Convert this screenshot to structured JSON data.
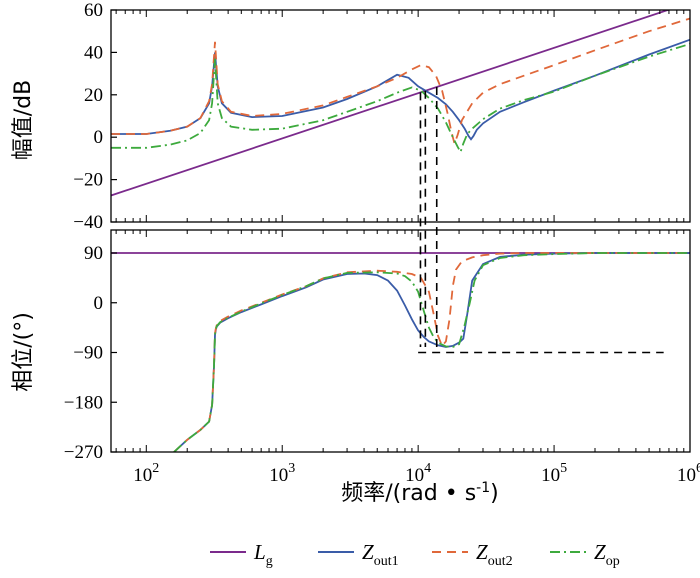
{
  "chart_data": [
    {
      "type": "line",
      "panel": "magnitude",
      "xscale": "log",
      "xlim": [
        55,
        1000000
      ],
      "ylim": [
        -40,
        60
      ],
      "yticks": [
        -40,
        -20,
        0,
        20,
        40,
        60
      ],
      "ylabel": "幅值/dB",
      "series": [
        {
          "name": "Lg",
          "color": "#7B2A8C",
          "dash": "solid",
          "x": [
            55,
            1000000
          ],
          "y": [
            -27.5,
            63.5
          ]
        },
        {
          "name": "Zout1",
          "color": "#3A5CA8",
          "dash": "solid",
          "x": [
            55,
            100,
            150,
            200,
            250,
            290,
            305,
            320,
            335,
            360,
            420,
            600,
            1000,
            2000,
            3000,
            5000,
            7000,
            8500,
            10000,
            12000,
            14000,
            16000,
            18000,
            20000,
            22000,
            23500,
            24500,
            25500,
            27000,
            30000,
            40000,
            60000,
            100000,
            200000,
            500000,
            1000000
          ],
          "y": [
            1.5,
            1.5,
            3.0,
            5.0,
            9.0,
            16.0,
            24.0,
            40.0,
            24.0,
            16.0,
            11.5,
            9.5,
            10.0,
            14.0,
            18.0,
            24.0,
            29.5,
            28.0,
            24.0,
            21.0,
            18.5,
            15.5,
            12.0,
            8.0,
            4.0,
            0.5,
            -1.0,
            0.5,
            3.5,
            6.5,
            12.0,
            16.5,
            22.0,
            29.0,
            39.0,
            46.0
          ]
        },
        {
          "name": "Zout2",
          "color": "#E0683A",
          "dash": "dash",
          "x": [
            55,
            100,
            150,
            200,
            250,
            290,
            305,
            320,
            335,
            360,
            420,
            600,
            1000,
            2000,
            3000,
            5000,
            7000,
            9000,
            10500,
            12000,
            13500,
            15000,
            16500,
            17500,
            18500,
            19500,
            21000,
            25000,
            30000,
            40000,
            60000,
            100000,
            200000,
            500000,
            1000000
          ],
          "y": [
            1.5,
            1.5,
            3.0,
            5.0,
            9.0,
            17.0,
            25.0,
            45.0,
            25.0,
            17.0,
            12.0,
            10.0,
            11.0,
            15.0,
            19.0,
            24.0,
            28.0,
            32.0,
            34.0,
            33.0,
            29.0,
            22.0,
            11.0,
            3.0,
            -3.0,
            1.0,
            8.0,
            16.0,
            21.0,
            25.0,
            29.0,
            34.0,
            41.0,
            50.0,
            56.0
          ]
        },
        {
          "name": "Zop",
          "color": "#3DAA3D",
          "dash": "dashdot",
          "x": [
            55,
            100,
            150,
            200,
            250,
            290,
            305,
            320,
            335,
            360,
            420,
            600,
            1000,
            2000,
            3000,
            5000,
            7000,
            9000,
            10500,
            12000,
            14000,
            16000,
            18000,
            19500,
            20500,
            21500,
            23000,
            25000,
            30000,
            40000,
            60000,
            100000,
            200000,
            500000,
            1000000
          ],
          "y": [
            -5.0,
            -5.0,
            -3.5,
            -1.5,
            2.0,
            8.0,
            16.0,
            37.0,
            16.0,
            9.0,
            5.0,
            3.5,
            4.0,
            8.0,
            12.0,
            17.0,
            21.0,
            23.5,
            22.0,
            18.5,
            13.5,
            7.0,
            0.0,
            -4.5,
            -7.0,
            -3.0,
            1.5,
            4.0,
            8.5,
            13.5,
            17.5,
            21.5,
            29.0,
            38.0,
            44.0
          ]
        }
      ],
      "crossover_markers": [
        {
          "x": 10400
        },
        {
          "x": 11300
        },
        {
          "x": 13700
        }
      ]
    },
    {
      "type": "line",
      "panel": "phase",
      "xscale": "log",
      "xlim": [
        55,
        1000000
      ],
      "xticks": [
        100,
        1000,
        10000,
        100000,
        1000000
      ],
      "xtick_labels": [
        "10",
        "10",
        "10",
        "10",
        "10"
      ],
      "xtick_exponents": [
        "2",
        "3",
        "4",
        "5",
        "6"
      ],
      "ylim": [
        -270,
        90
      ],
      "yticks": [
        -270,
        -180,
        -90,
        0,
        90
      ],
      "ylabel": "相位/(°)",
      "xlabel": "频率/(rad • s",
      "xlabel_sup": "-1",
      "xlabel_end": ")",
      "reference_line": {
        "y": -90,
        "x": [
          10000,
          640000
        ],
        "dash": "dash"
      },
      "series": [
        {
          "name": "Lg",
          "color": "#7B2A8C",
          "dash": "solid",
          "x": [
            55,
            1000000
          ],
          "y": [
            90,
            90
          ]
        },
        {
          "name": "Zout1",
          "color": "#3A5CA8",
          "dash": "solid",
          "x": [
            160,
            200,
            250,
            290,
            305,
            315,
            320,
            325,
            330,
            350,
            400,
            500,
            700,
            1000,
            1500,
            2000,
            3000,
            4000,
            5000,
            6000,
            7000,
            8000,
            9000,
            10000,
            11000,
            12000,
            14000,
            16000,
            18000,
            20000,
            21500,
            23000,
            25000,
            30000,
            40000,
            60000,
            100000,
            200000,
            1000000
          ],
          "y": [
            -270,
            -248,
            -230,
            -215,
            -185,
            -115,
            -58,
            -48,
            -43,
            -36,
            -28,
            -17,
            -3,
            12,
            28,
            42,
            52,
            53,
            50,
            40,
            22,
            -5,
            -30,
            -50,
            -62,
            -70,
            -77,
            -80,
            -78,
            -72,
            -65,
            -20,
            40,
            70,
            83,
            87,
            89,
            90,
            90
          ]
        },
        {
          "name": "Zout2",
          "color": "#E0683A",
          "dash": "dash",
          "x": [
            160,
            200,
            250,
            290,
            305,
            315,
            320,
            325,
            330,
            350,
            400,
            500,
            700,
            1000,
            1500,
            2000,
            3000,
            5000,
            7000,
            9000,
            10500,
            12000,
            13000,
            14000,
            15000,
            16000,
            17000,
            18000,
            19000,
            21000,
            25000,
            30000,
            40000,
            60000,
            100000,
            200000,
            1000000
          ],
          "y": [
            -270,
            -248,
            -230,
            -215,
            -185,
            -115,
            -55,
            -46,
            -40,
            -33,
            -25,
            -14,
            0,
            15,
            30,
            44,
            55,
            58,
            56,
            52,
            45,
            20,
            -20,
            -60,
            -78,
            -70,
            -30,
            30,
            60,
            75,
            82,
            86,
            89,
            90,
            90,
            90,
            90
          ]
        },
        {
          "name": "Zop",
          "color": "#3DAA3D",
          "dash": "dashdot",
          "x": [
            160,
            200,
            250,
            290,
            305,
            315,
            320,
            325,
            330,
            350,
            400,
            500,
            700,
            1000,
            1500,
            2000,
            3000,
            5000,
            7000,
            8000,
            9000,
            10000,
            11000,
            12000,
            13000,
            14000,
            16000,
            18000,
            20000,
            22000,
            24000,
            26000,
            30000,
            40000,
            60000,
            100000,
            200000,
            1000000
          ],
          "y": [
            -270,
            -248,
            -230,
            -215,
            -185,
            -115,
            -57,
            -47,
            -42,
            -35,
            -27,
            -16,
            -1,
            14,
            30,
            44,
            54,
            55,
            53,
            48,
            38,
            20,
            -15,
            -45,
            -62,
            -72,
            -79,
            -80,
            -75,
            -40,
            0,
            40,
            68,
            81,
            86,
            88,
            90,
            90
          ]
        }
      ],
      "crossover_markers": [
        {
          "x": 10400
        },
        {
          "x": 11300
        },
        {
          "x": 13700
        }
      ]
    }
  ],
  "legend": {
    "placement": "bottom",
    "entries": [
      {
        "main": "L",
        "sub": "g",
        "color": "#7B2A8C",
        "dash": "solid"
      },
      {
        "main": "Z",
        "sub": "out1",
        "color": "#3A5CA8",
        "dash": "solid"
      },
      {
        "main": "Z",
        "sub": "out2",
        "color": "#E0683A",
        "dash": "dash"
      },
      {
        "main": "Z",
        "sub": "op",
        "color": "#3DAA3D",
        "dash": "dashdot"
      }
    ]
  }
}
